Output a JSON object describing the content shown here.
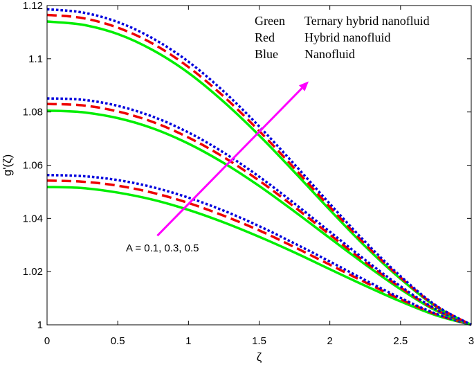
{
  "chart_data": {
    "type": "line",
    "xlabel": "ζ",
    "ylabel": "g'(ζ)",
    "xlim": [
      0,
      3
    ],
    "ylim": [
      1,
      1.12
    ],
    "xticks": [
      0,
      0.5,
      1,
      1.5,
      2,
      2.5,
      3
    ],
    "xtick_labels": [
      "0",
      "0.5",
      "1",
      "1.5",
      "2",
      "2.5",
      "3"
    ],
    "yticks": [
      1,
      1.02,
      1.04,
      1.06,
      1.08,
      1.1,
      1.12
    ],
    "ytick_labels": [
      "1",
      "1.02",
      "1.04",
      "1.06",
      "1.08",
      "1.1",
      "1.12"
    ],
    "grid": false,
    "legend": {
      "placement": "top-right",
      "entries": [
        {
          "color_word": "Green",
          "description": "Ternary hybrid nanofluid"
        },
        {
          "color_word": "Red",
          "description": "Hybrid nanofluid"
        },
        {
          "color_word": "Blue",
          "description": "Nanofluid"
        }
      ]
    },
    "annotation": {
      "text": "A = 0.1, 0.3, 0.5",
      "arrow_from": [
        0.78,
        1.0335
      ],
      "arrow_to": [
        1.85,
        1.0915
      ],
      "color": "#ff00ff"
    },
    "series": [
      {
        "group": "A = 0.1",
        "fluid": "Ternary hybrid nanofluid",
        "color": "#00ee00",
        "style": "solid",
        "x": [
          0,
          0.25,
          0.5,
          0.75,
          1.0,
          1.25,
          1.5,
          1.75,
          2.0,
          2.25,
          2.5,
          2.75,
          3.0
        ],
        "y": [
          1.0518,
          1.0514,
          1.0497,
          1.047,
          1.0432,
          1.0385,
          1.0331,
          1.0272,
          1.0209,
          1.0147,
          1.0088,
          1.0036,
          1.0
        ]
      },
      {
        "group": "A = 0.1",
        "fluid": "Hybrid nanofluid",
        "color": "#ee0000",
        "style": "dashed",
        "x": [
          0,
          0.25,
          0.5,
          0.75,
          1.0,
          1.25,
          1.5,
          1.75,
          2.0,
          2.25,
          2.5,
          2.75,
          3.0
        ],
        "y": [
          1.0542,
          1.0538,
          1.0523,
          1.0496,
          1.0458,
          1.041,
          1.0355,
          1.0292,
          1.0226,
          1.016,
          1.0096,
          1.004,
          1.0
        ]
      },
      {
        "group": "A = 0.1",
        "fluid": "Nanofluid",
        "color": "#0000dd",
        "style": "dotted",
        "x": [
          0,
          0.25,
          0.5,
          0.75,
          1.0,
          1.25,
          1.5,
          1.75,
          2.0,
          2.25,
          2.5,
          2.75,
          3.0
        ],
        "y": [
          1.0563,
          1.0559,
          1.0544,
          1.0517,
          1.0478,
          1.0429,
          1.0371,
          1.0306,
          1.0238,
          1.0168,
          1.0101,
          1.0042,
          1.0
        ]
      },
      {
        "group": "A = 0.3",
        "fluid": "Ternary hybrid nanofluid",
        "color": "#00ee00",
        "style": "solid",
        "x": [
          0,
          0.25,
          0.5,
          0.75,
          1.0,
          1.25,
          1.5,
          1.75,
          2.0,
          2.25,
          2.5,
          2.75,
          3.0
        ],
        "y": [
          1.0805,
          1.0799,
          1.0777,
          1.0738,
          1.0681,
          1.0608,
          1.0522,
          1.0426,
          1.0326,
          1.0227,
          1.0134,
          1.0054,
          1.0
        ]
      },
      {
        "group": "A = 0.3",
        "fluid": "Hybrid nanofluid",
        "color": "#ee0000",
        "style": "dashed",
        "x": [
          0,
          0.25,
          0.5,
          0.75,
          1.0,
          1.25,
          1.5,
          1.75,
          2.0,
          2.25,
          2.5,
          2.75,
          3.0
        ],
        "y": [
          1.083,
          1.0825,
          1.0802,
          1.0762,
          1.0704,
          1.063,
          1.0542,
          1.0443,
          1.0339,
          1.0236,
          1.014,
          1.0057,
          1.0
        ]
      },
      {
        "group": "A = 0.3",
        "fluid": "Nanofluid",
        "color": "#0000dd",
        "style": "dotted",
        "x": [
          0,
          0.25,
          0.5,
          0.75,
          1.0,
          1.25,
          1.5,
          1.75,
          2.0,
          2.25,
          2.5,
          2.75,
          3.0
        ],
        "y": [
          1.0851,
          1.0846,
          1.0823,
          1.0782,
          1.0723,
          1.0647,
          1.0557,
          1.0456,
          1.035,
          1.0244,
          1.0145,
          1.0059,
          1.0
        ]
      },
      {
        "group": "A = 0.5",
        "fluid": "Ternary hybrid nanofluid",
        "color": "#00ee00",
        "style": "solid",
        "x": [
          0,
          0.25,
          0.5,
          0.75,
          1.0,
          1.25,
          1.5,
          1.75,
          2.0,
          2.25,
          2.5,
          2.75,
          3.0
        ],
        "y": [
          1.114,
          1.1128,
          1.1093,
          1.1032,
          1.0947,
          1.0838,
          1.0712,
          1.0574,
          1.0432,
          1.0295,
          1.0173,
          1.0069,
          1.0
        ]
      },
      {
        "group": "A = 0.5",
        "fluid": "Hybrid nanofluid",
        "color": "#ee0000",
        "style": "dashed",
        "x": [
          0,
          0.25,
          0.5,
          0.75,
          1.0,
          1.25,
          1.5,
          1.75,
          2.0,
          2.25,
          2.5,
          2.75,
          3.0
        ],
        "y": [
          1.1165,
          1.1153,
          1.1117,
          1.1056,
          1.0969,
          1.0858,
          1.0729,
          1.0588,
          1.0443,
          1.0303,
          1.0178,
          1.0071,
          1.0
        ]
      },
      {
        "group": "A = 0.5",
        "fluid": "Nanofluid",
        "color": "#0000dd",
        "style": "dotted",
        "x": [
          0,
          0.25,
          0.5,
          0.75,
          1.0,
          1.25,
          1.5,
          1.75,
          2.0,
          2.25,
          2.5,
          2.75,
          3.0
        ],
        "y": [
          1.1186,
          1.1174,
          1.1138,
          1.1076,
          1.0989,
          1.0877,
          1.0746,
          1.0603,
          1.0455,
          1.0312,
          1.0183,
          1.0073,
          1.0
        ]
      }
    ]
  }
}
